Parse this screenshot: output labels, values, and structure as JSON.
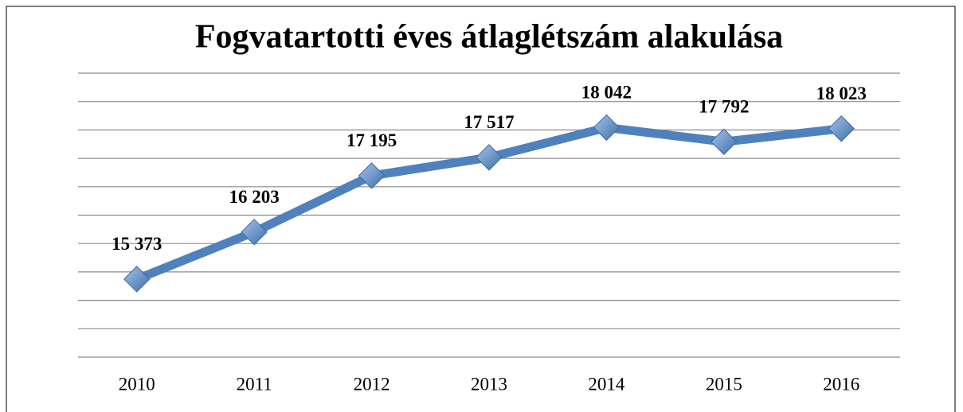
{
  "chart_data": {
    "type": "line",
    "title": "Fogvatartotti éves átlaglétszám alakulása",
    "categories": [
      "2010",
      "2011",
      "2012",
      "2013",
      "2014",
      "2015",
      "2016"
    ],
    "series": [
      {
        "color": "#4f81bd",
        "values": [
          15373,
          16203,
          17195,
          17517,
          18042,
          17792,
          18023
        ],
        "value_labels": [
          "15 373",
          "16 203",
          "17 195",
          "17 517",
          "18 042",
          "17 792",
          "18 023"
        ]
      }
    ],
    "ylim": [
      14000,
      19000
    ],
    "yticks": [
      14000,
      14500,
      15000,
      15500,
      16000,
      16500,
      17000,
      17500,
      18000,
      18500,
      19000
    ],
    "grid": true
  }
}
